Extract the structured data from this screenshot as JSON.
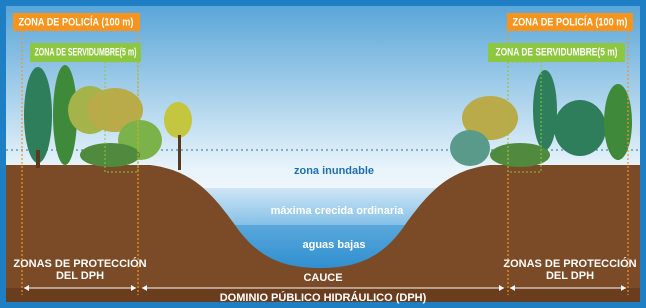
{
  "left_bank": {
    "police_zone": "ZONA DE POLICÍA (100 m)",
    "easement_zone": "ZONA DE SERVIDUMBRE(5 m)",
    "protection_zone": [
      "ZONAS DE PROTECCIÓN",
      "DEL DPH"
    ]
  },
  "right_bank": {
    "police_zone": "ZONA DE POLICÍA (100 m)",
    "easement_zone": "ZONA DE SERVIDUMBRE(5 m)",
    "protection_zone": [
      "ZONAS DE PROTECCIÓN",
      "DEL DPH"
    ]
  },
  "water_levels": {
    "flood_zone": "zona inundable",
    "max_ordinary_flood": "máxima crecida ordinaria",
    "low_water": "aguas bajas"
  },
  "channel": "CAUCE",
  "public_domain": "DOMINIO PÚBLICO HIDRÁULICO (DPH)"
}
